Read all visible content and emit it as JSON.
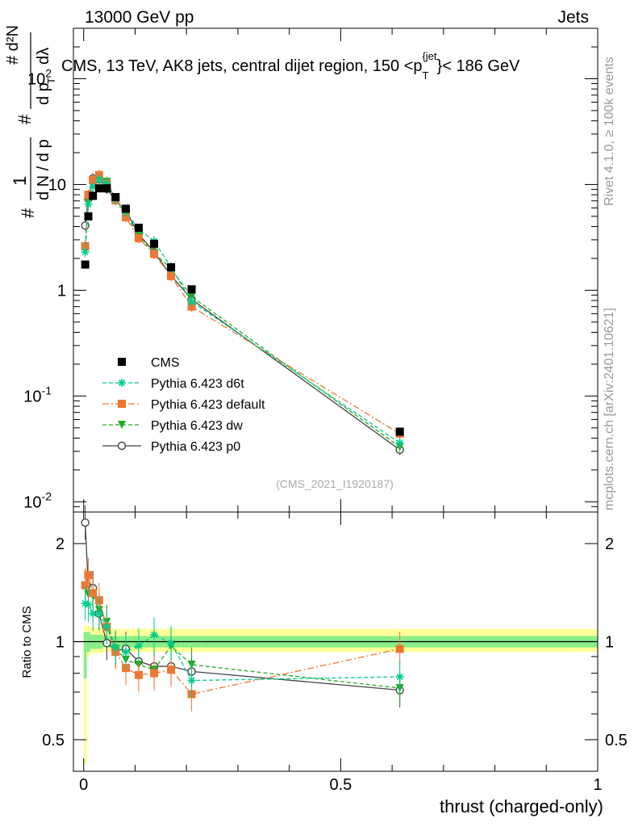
{
  "header": {
    "left": "13000 GeV pp",
    "right": "Jets"
  },
  "side_text": {
    "rivet": "Rivet 4.1.0, ≥ 100k events",
    "mcplots": "mcplots.cern.ch [arXiv:2401.10621]"
  },
  "chart_data": [
    {
      "type": "scatter",
      "panel": "main",
      "title": "CMS, 13 TeV, AK8 jets, central dijet region, 150 <p_T^{jet}> < 186 GeV",
      "title_parts": {
        "prefix": "CMS, 13 TeV, AK8 jets, central dijet region, 150 <p",
        "sub": "T",
        "sup": "{jet",
        "suffix": "}< 186 GeV"
      },
      "ylabel_parts": {
        "num": "#    d²N",
        "num_top": "#",
        "one": "1",
        "den": "d N / d p",
        "den2": "d p",
        "den_sub": "T",
        "dlambda": "dλ",
        "hash": "#"
      },
      "yscale": "log",
      "ylim": [
        0.008,
        300
      ],
      "xlim": [
        -0.02,
        1.0
      ],
      "ytick_labels": [
        "10^{-2}",
        "10^{-1}",
        "1",
        "10",
        "10^{2}"
      ],
      "ytick_values": [
        0.01,
        0.1,
        1,
        10,
        100
      ],
      "watermark": "(CMS_2021_I1920187)",
      "legend": [
        "CMS",
        "Pythia 6.423 d6t",
        "Pythia 6.423 default",
        "Pythia 6.423 dw",
        "Pythia 6.423 p0"
      ],
      "legend_position": "lower-left",
      "series": [
        {
          "name": "CMS",
          "color": "#000000",
          "marker": "square",
          "x": [
            0.003,
            0.009,
            0.018,
            0.03,
            0.045,
            0.062,
            0.082,
            0.107,
            0.137,
            0.17,
            0.21,
            0.615
          ],
          "y": [
            1.75,
            5.0,
            7.8,
            9.2,
            9.2,
            7.6,
            5.9,
            3.9,
            2.75,
            1.65,
            1.02,
            0.046
          ]
        },
        {
          "name": "Pythia 6.423 d6t",
          "color": "#00cc88",
          "marker": "star",
          "dash": "5,3",
          "x": [
            0.003,
            0.009,
            0.018,
            0.03,
            0.045,
            0.062,
            0.082,
            0.107,
            0.137,
            0.17,
            0.21,
            0.615
          ],
          "y": [
            2.3,
            6.5,
            9.5,
            11.2,
            10.2,
            7.3,
            5.5,
            3.8,
            2.9,
            1.65,
            0.78,
            0.036
          ]
        },
        {
          "name": "Pythia 6.423 default",
          "color": "#ee7733",
          "marker": "square",
          "dash": "8,3,2,3",
          "x": [
            0.003,
            0.009,
            0.018,
            0.03,
            0.045,
            0.062,
            0.082,
            0.107,
            0.137,
            0.17,
            0.21,
            0.615
          ],
          "y": [
            2.6,
            8.0,
            11.0,
            12.3,
            10.2,
            7.1,
            4.9,
            3.1,
            2.2,
            1.36,
            0.7,
            0.044
          ]
        },
        {
          "name": "Pythia 6.423 dw",
          "color": "#22aa22",
          "marker": "triangle-down",
          "dash": "5,3",
          "x": [
            0.003,
            0.009,
            0.018,
            0.03,
            0.045,
            0.062,
            0.082,
            0.107,
            0.137,
            0.17,
            0.21,
            0.615
          ],
          "y": [
            2.6,
            7.0,
            10.8,
            11.5,
            10.6,
            7.2,
            5.2,
            3.3,
            2.25,
            1.6,
            0.87,
            0.033
          ]
        },
        {
          "name": "Pythia 6.423 p0",
          "color": "#444444",
          "marker": "open-circle",
          "dash": "",
          "x": [
            0.003,
            0.009,
            0.018,
            0.03,
            0.045,
            0.062,
            0.082,
            0.107,
            0.137,
            0.17,
            0.21,
            0.615
          ],
          "y": [
            4.1,
            7.3,
            11.4,
            11.2,
            9.1,
            7.1,
            5.6,
            3.4,
            2.3,
            1.38,
            0.82,
            0.031
          ]
        }
      ]
    },
    {
      "type": "scatter",
      "panel": "ratio",
      "ylabel": "Ratio to CMS",
      "xlabel": "thrust (charged-only)",
      "yscale": "log",
      "ylim": [
        0.4,
        2.5
      ],
      "xlim": [
        -0.02,
        1.0
      ],
      "xtick_labels": [
        "0",
        "0.5",
        "1"
      ],
      "xtick_values": [
        0,
        0.5,
        1
      ],
      "ytick_labels": [
        "0.5",
        "1",
        "2"
      ],
      "ytick_values": [
        0.5,
        1,
        2
      ],
      "bands": {
        "inner_color": "#88ee88",
        "outer_color": "#ffff99"
      },
      "series": [
        {
          "name": "Pythia 6.423 d6t",
          "y": [
            1.31,
            1.3,
            1.22,
            1.22,
            1.11,
            0.96,
            0.93,
            0.97,
            1.05,
            0.99,
            0.76,
            0.78
          ]
        },
        {
          "name": "Pythia 6.423 default",
          "y": [
            1.49,
            1.6,
            1.41,
            1.34,
            1.11,
            0.93,
            0.83,
            0.79,
            0.8,
            0.82,
            0.69,
            0.95
          ]
        },
        {
          "name": "Pythia 6.423 dw",
          "y": [
            1.48,
            1.4,
            1.38,
            1.25,
            1.15,
            0.95,
            0.88,
            0.85,
            0.82,
            0.97,
            0.85,
            0.72
          ]
        },
        {
          "name": "Pythia 6.423 p0",
          "y": [
            2.32,
            1.47,
            1.46,
            1.22,
            0.99,
            0.94,
            0.95,
            0.87,
            0.84,
            0.84,
            0.81,
            0.71
          ]
        }
      ]
    }
  ]
}
